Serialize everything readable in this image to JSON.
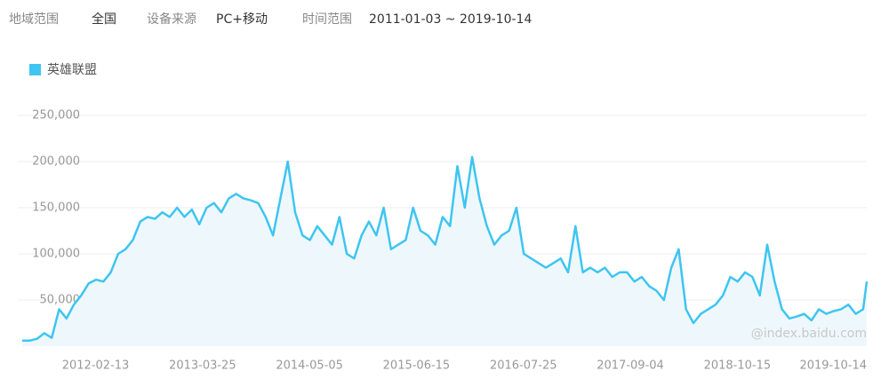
{
  "filters": [
    {
      "label": "地域范围",
      "value": "全国"
    },
    {
      "label": "设备来源",
      "value": "PC+移动"
    },
    {
      "label": "时间范围",
      "value": "2011-01-03 ~ 2019-10-14"
    }
  ],
  "chart_data": {
    "type": "line",
    "watermark": "@index.baidu.com",
    "x": [
      "2011-01-03",
      "2011-01-31",
      "2011-02-28",
      "2011-03-28",
      "2011-04-25",
      "2011-05-23",
      "2011-06-20",
      "2011-07-18",
      "2011-08-15",
      "2011-09-12",
      "2011-10-10",
      "2011-11-07",
      "2011-12-05",
      "2012-01-02",
      "2012-01-30",
      "2012-02-27",
      "2012-03-26",
      "2012-04-23",
      "2012-05-21",
      "2012-06-18",
      "2012-07-16",
      "2012-08-13",
      "2012-09-10",
      "2012-10-08",
      "2012-11-05",
      "2012-12-03",
      "2012-12-31",
      "2013-01-28",
      "2013-02-25",
      "2013-03-25",
      "2013-04-22",
      "2013-05-20",
      "2013-06-17",
      "2013-07-15",
      "2013-08-12",
      "2013-09-09",
      "2013-10-07",
      "2013-11-04",
      "2013-12-02",
      "2013-12-30",
      "2014-01-27",
      "2014-02-24",
      "2014-03-24",
      "2014-04-21",
      "2014-05-19",
      "2014-06-16",
      "2014-07-14",
      "2014-08-11",
      "2014-09-08",
      "2014-10-06",
      "2014-11-03",
      "2014-12-01",
      "2014-12-29",
      "2015-01-26",
      "2015-02-23",
      "2015-03-23",
      "2015-04-20",
      "2015-05-18",
      "2015-06-15",
      "2015-07-13",
      "2015-08-10",
      "2015-09-07",
      "2015-10-05",
      "2015-11-02",
      "2015-11-30",
      "2015-12-28",
      "2016-01-25",
      "2016-02-22",
      "2016-03-21",
      "2016-04-18",
      "2016-05-16",
      "2016-06-13",
      "2016-07-11",
      "2016-08-08",
      "2016-09-05",
      "2016-10-03",
      "2016-10-31",
      "2016-11-28",
      "2016-12-26",
      "2017-01-23",
      "2017-02-20",
      "2017-03-20",
      "2017-04-17",
      "2017-05-15",
      "2017-06-12",
      "2017-07-10",
      "2017-08-07",
      "2017-09-04",
      "2017-10-02",
      "2017-10-30",
      "2017-11-27",
      "2017-12-25",
      "2018-01-22",
      "2018-02-19",
      "2018-03-19",
      "2018-04-16",
      "2018-05-14",
      "2018-06-11",
      "2018-07-09",
      "2018-08-06",
      "2018-09-03",
      "2018-10-01",
      "2018-10-29",
      "2018-11-26",
      "2018-12-24",
      "2019-01-21",
      "2019-02-18",
      "2019-03-18",
      "2019-04-15",
      "2019-05-13",
      "2019-06-10",
      "2019-07-08",
      "2019-08-05",
      "2019-09-02",
      "2019-09-30",
      "2019-10-14"
    ],
    "series": [
      {
        "name": "英雄联盟",
        "color": "#3ec5f2",
        "values": [
          6000,
          6000,
          8000,
          14000,
          9000,
          40000,
          30000,
          45000,
          55000,
          68000,
          72000,
          70000,
          80000,
          100000,
          105000,
          115000,
          135000,
          140000,
          138000,
          145000,
          140000,
          150000,
          140000,
          148000,
          132000,
          150000,
          155000,
          145000,
          160000,
          165000,
          160000,
          158000,
          155000,
          140000,
          120000,
          160000,
          200000,
          145000,
          120000,
          115000,
          130000,
          120000,
          110000,
          140000,
          100000,
          95000,
          120000,
          135000,
          120000,
          150000,
          105000,
          110000,
          115000,
          150000,
          125000,
          120000,
          110000,
          140000,
          130000,
          195000,
          150000,
          205000,
          160000,
          130000,
          110000,
          120000,
          125000,
          150000,
          100000,
          95000,
          90000,
          85000,
          90000,
          95000,
          80000,
          130000,
          80000,
          85000,
          80000,
          85000,
          75000,
          80000,
          80000,
          70000,
          75000,
          65000,
          60000,
          50000,
          85000,
          105000,
          40000,
          25000,
          35000,
          40000,
          45000,
          55000,
          75000,
          70000,
          80000,
          75000,
          55000,
          110000,
          70000,
          40000,
          30000,
          32000,
          35000,
          28000,
          40000,
          35000,
          38000,
          40000,
          45000,
          35000,
          40000,
          70000
        ]
      }
    ],
    "xlim": [
      "2011-01-03",
      "2019-10-14"
    ],
    "xticks": [
      "2012-02-13",
      "2013-03-25",
      "2014-05-05",
      "2015-06-15",
      "2016-07-25",
      "2017-09-04",
      "2018-10-15",
      "2019-10-14"
    ],
    "ylim": [
      0,
      250000
    ],
    "yticks": [
      {
        "value": 50000,
        "label": "50,000"
      },
      {
        "value": 100000,
        "label": "100,000"
      },
      {
        "value": 150000,
        "label": "150,000"
      },
      {
        "value": 200000,
        "label": "200,000"
      },
      {
        "value": 250000,
        "label": "250,000"
      }
    ],
    "grid": true,
    "fill_area": true,
    "area_color": "#eef8fc"
  }
}
